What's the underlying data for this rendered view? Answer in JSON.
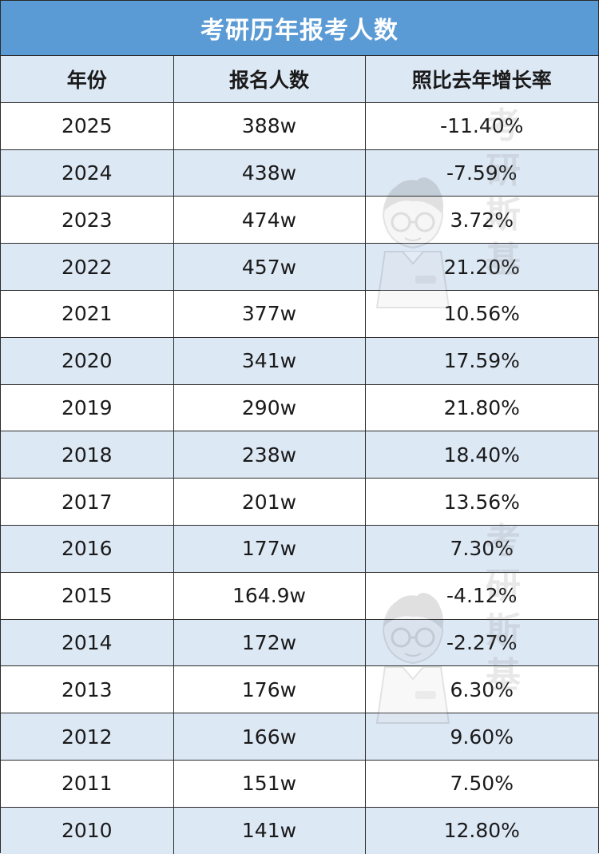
{
  "title": "考研历年报考人数",
  "headers": {
    "year": "年份",
    "count": "报名人数",
    "growth": "照比去年增长率"
  },
  "rows": [
    {
      "year": "2025",
      "count": "388w",
      "growth": "-11.40%"
    },
    {
      "year": "2024",
      "count": "438w",
      "growth": "-7.59%"
    },
    {
      "year": "2023",
      "count": "474w",
      "growth": "3.72%"
    },
    {
      "year": "2022",
      "count": "457w",
      "growth": "21.20%"
    },
    {
      "year": "2021",
      "count": "377w",
      "growth": "10.56%"
    },
    {
      "year": "2020",
      "count": "341w",
      "growth": "17.59%"
    },
    {
      "year": "2019",
      "count": "290w",
      "growth": "21.80%"
    },
    {
      "year": "2018",
      "count": "238w",
      "growth": "18.40%"
    },
    {
      "year": "2017",
      "count": "201w",
      "growth": "13.56%"
    },
    {
      "year": "2016",
      "count": "177w",
      "growth": "7.30%"
    },
    {
      "year": "2015",
      "count": "164.9w",
      "growth": "-4.12%"
    },
    {
      "year": "2014",
      "count": "172w",
      "growth": "-2.27%"
    },
    {
      "year": "2013",
      "count": "176w",
      "growth": "6.30%"
    },
    {
      "year": "2012",
      "count": "166w",
      "growth": "9.60%"
    },
    {
      "year": "2011",
      "count": "151w",
      "growth": "7.50%"
    },
    {
      "year": "2010",
      "count": "141w",
      "growth": "12.80%"
    }
  ],
  "watermark_text": "考研斯基",
  "colors": {
    "title_bg": "#5b9bd5",
    "band": "#dde8f5",
    "border": "#2b2b2b"
  }
}
